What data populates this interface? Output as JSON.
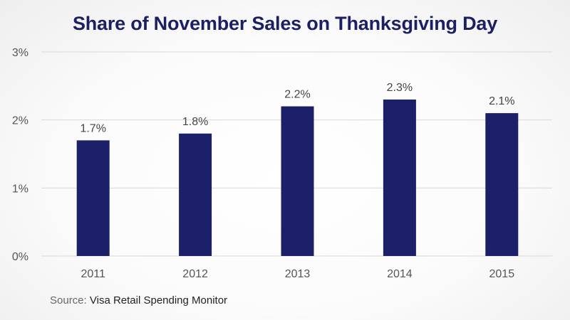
{
  "title": "Share of November Sales on Thanksgiving Day",
  "source": {
    "label": "Source:",
    "text": "Visa Retail Spending Monitor"
  },
  "colors": {
    "bar": "#1c2069",
    "title": "#1c2063",
    "grid": "#d9d9d9",
    "axis_text": "#555555",
    "data_label": "#444444"
  },
  "chart_data": {
    "type": "bar",
    "title": "Share of November Sales on Thanksgiving Day",
    "categories": [
      "2011",
      "2012",
      "2013",
      "2014",
      "2015"
    ],
    "values": [
      1.7,
      1.8,
      2.2,
      2.3,
      2.1
    ],
    "value_labels": [
      "1.7%",
      "1.8%",
      "2.2%",
      "2.3%",
      "2.1%"
    ],
    "ylim": [
      0,
      3
    ],
    "yticks": [
      0,
      1,
      2,
      3
    ],
    "ytick_labels": [
      "0%",
      "1%",
      "2%",
      "3%"
    ],
    "xlabel": "",
    "ylabel": "",
    "grid": true,
    "legend": "none"
  }
}
